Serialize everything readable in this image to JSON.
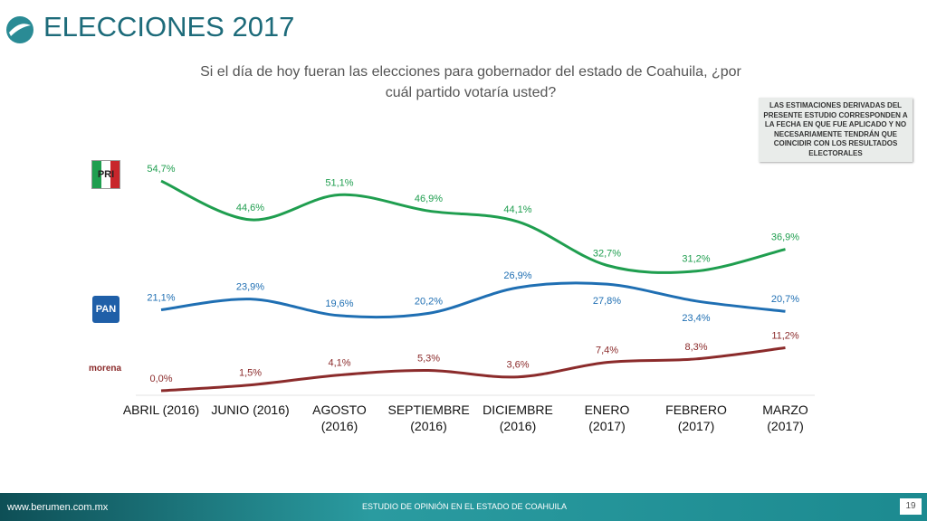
{
  "slide": {
    "title": "ELECCIONES 2017",
    "disclaimer": "LAS ESTIMACIONES DERIVADAS DEL PRESENTE ESTUDIO CORRESPONDEN A LA FECHA EN QUE FUE APLICADO Y NO NECESARIAMENTE TENDRÁN QUE COINCIDIR CON LOS RESULTADOS ELECTORALES",
    "footer": {
      "url": "www.berumen.com.mx",
      "center": "ESTUDIO DE OPINIÓN EN EL ESTADO DE COAHUILA",
      "page": "19"
    }
  },
  "chart_data": {
    "type": "line",
    "title": "Si el día de hoy fueran las elecciones para gobernador del estado de Coahuila, ¿por cuál partido votaría usted?",
    "categories": [
      "ABRIL (2016)",
      "JUNIO (2016)",
      "AGOSTO (2016)",
      "SEPTIEMBRE (2016)",
      "DICIEMBRE (2016)",
      "ENERO (2017)",
      "FEBRERO (2017)",
      "MARZO (2017)"
    ],
    "ylim": [
      0,
      56
    ],
    "series": [
      {
        "name": "PRI",
        "color": "#1f9e4f",
        "values": [
          54.7,
          44.6,
          51.1,
          46.9,
          44.1,
          32.7,
          31.2,
          36.9
        ],
        "value_labels": [
          "54,7%",
          "44,6%",
          "51,1%",
          "46,9%",
          "44,1%",
          "32,7%",
          "31,2%",
          "36,9%"
        ]
      },
      {
        "name": "PAN",
        "color": "#1f6fb3",
        "values": [
          21.1,
          23.9,
          19.6,
          20.2,
          26.9,
          27.8,
          23.4,
          20.7
        ],
        "value_labels": [
          "21,1%",
          "23,9%",
          "19,6%",
          "20,2%",
          "26,9%",
          "27,8%",
          "23,4%",
          "20,7%"
        ]
      },
      {
        "name": "morena",
        "color": "#8b2b2b",
        "values": [
          0.0,
          1.5,
          4.1,
          5.3,
          3.6,
          7.4,
          8.3,
          11.2
        ],
        "value_labels": [
          "0,0%",
          "1,5%",
          "4,1%",
          "5,3%",
          "3,6%",
          "7,4%",
          "8,3%",
          "11,2%"
        ]
      }
    ]
  }
}
